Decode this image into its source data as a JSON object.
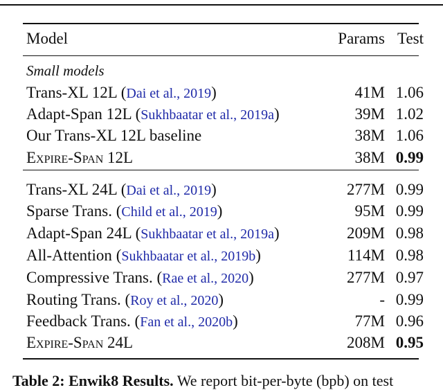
{
  "table": {
    "headers": {
      "model": "Model",
      "params": "Params",
      "test": "Test"
    },
    "groups": [
      {
        "label": "Small models",
        "rows": [
          {
            "model": "Trans-XL 12L",
            "cite_open": " (",
            "cite": "Dai et al., 2019",
            "cite_close": ")",
            "params": "41M",
            "test": "1.06",
            "bold": false,
            "smallcaps": false
          },
          {
            "model": "Adapt-Span 12L",
            "cite_open": " (",
            "cite": "Sukhbaatar et al., 2019a",
            "cite_close": ")",
            "params": "39M",
            "test": "1.02",
            "bold": false,
            "smallcaps": false
          },
          {
            "model": "Our Trans-XL 12L baseline",
            "cite_open": "",
            "cite": "",
            "cite_close": "",
            "params": "38M",
            "test": "1.06",
            "bold": false,
            "smallcaps": false
          },
          {
            "model": "Expire-Span 12L",
            "cite_open": "",
            "cite": "",
            "cite_close": "",
            "params": "38M",
            "test": "0.99",
            "bold": true,
            "smallcaps": true
          }
        ]
      },
      {
        "label": "",
        "rows": [
          {
            "model": "Trans-XL 24L",
            "cite_open": " (",
            "cite": "Dai et al., 2019",
            "cite_close": ")",
            "params": "277M",
            "test": "0.99",
            "bold": false,
            "smallcaps": false
          },
          {
            "model": "Sparse Trans.",
            "cite_open": " (",
            "cite": "Child et al., 2019",
            "cite_close": ")",
            "params": "95M",
            "test": "0.99",
            "bold": false,
            "smallcaps": false
          },
          {
            "model": "Adapt-Span 24L",
            "cite_open": " (",
            "cite": "Sukhbaatar et al., 2019a",
            "cite_close": ")",
            "params": "209M",
            "test": "0.98",
            "bold": false,
            "smallcaps": false
          },
          {
            "model": "All-Attention",
            "cite_open": " (",
            "cite": "Sukhbaatar et al., 2019b",
            "cite_close": ")",
            "params": "114M",
            "test": "0.98",
            "bold": false,
            "smallcaps": false
          },
          {
            "model": "Compressive Trans.",
            "cite_open": " (",
            "cite": "Rae et al., 2020",
            "cite_close": ")",
            "params": "277M",
            "test": "0.97",
            "bold": false,
            "smallcaps": false
          },
          {
            "model": "Routing Trans.",
            "cite_open": " (",
            "cite": "Roy et al., 2020",
            "cite_close": ")",
            "params": "-",
            "test": "0.99",
            "bold": false,
            "smallcaps": false
          },
          {
            "model": "Feedback Trans.",
            "cite_open": " (",
            "cite": "Fan et al., 2020b",
            "cite_close": ")",
            "params": "77M",
            "test": "0.96",
            "bold": false,
            "smallcaps": false
          },
          {
            "model": "Expire-Span 24L",
            "cite_open": "",
            "cite": "",
            "cite_close": "",
            "params": "208M",
            "test": "0.95",
            "bold": true,
            "smallcaps": true
          }
        ]
      }
    ]
  },
  "caption": {
    "label": "Table 2: Enwik8 Results.",
    "text": " We report bit-per-byte (bpb) on test"
  },
  "colors": {
    "citation": "#1f2aa8"
  }
}
